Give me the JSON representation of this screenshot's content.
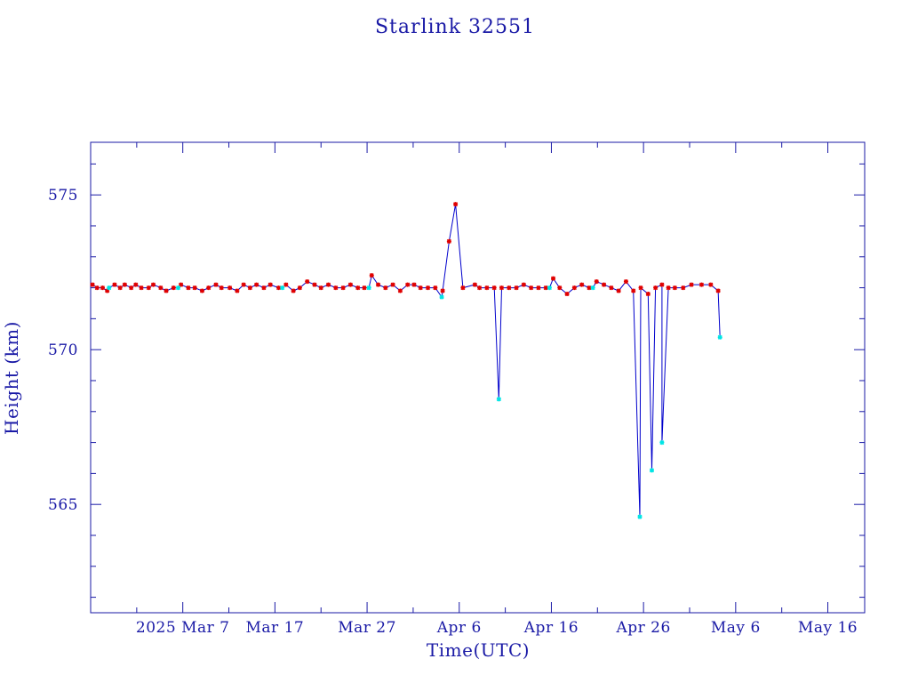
{
  "chart_data": {
    "type": "line",
    "title": "Starlink 32551",
    "xlabel": "Time(UTC)",
    "ylabel": "Height (km)",
    "x_ticks": [
      {
        "day": 0,
        "label": "2025 Mar  7"
      },
      {
        "day": 10,
        "label": "Mar 17"
      },
      {
        "day": 20,
        "label": "Mar 27"
      },
      {
        "day": 30,
        "label": "Apr  6"
      },
      {
        "day": 40,
        "label": "Apr 16"
      },
      {
        "day": 50,
        "label": "Apr 26"
      },
      {
        "day": 60,
        "label": "May  6"
      },
      {
        "day": 70,
        "label": "May 16"
      }
    ],
    "y_ticks": [
      565,
      570,
      575
    ],
    "xlim": [
      -10,
      74
    ],
    "ylim": [
      561.5,
      576.7
    ],
    "grid": false,
    "colors": {
      "axes": "#1a1aa6",
      "line": "#0000cc",
      "marker_primary": "#e00000",
      "marker_secondary": "#00e5e5"
    },
    "series": [
      {
        "name": "",
        "marker": "red",
        "x": [
          -9.8,
          -9.3,
          -8.7,
          -8.2,
          -7.4,
          -6.8,
          -6.3,
          -5.6,
          -5.1,
          -4.5,
          -3.7,
          -3.2,
          -2.4,
          -1.8,
          -1.0,
          -0.2,
          0.6,
          1.3,
          2.1,
          2.8,
          3.6,
          4.2,
          5.1,
          5.9,
          6.6,
          7.3,
          8.0,
          8.8,
          9.5,
          10.4,
          11.2,
          12.0,
          12.7,
          13.5,
          14.3,
          15.0,
          15.8,
          16.6,
          17.4,
          18.2,
          19.0,
          19.7,
          20.5,
          21.2,
          22.0,
          22.8,
          23.6,
          24.4,
          25.1,
          25.8,
          26.6,
          27.4,
          28.2,
          28.9,
          29.6,
          30.4,
          31.7,
          32.2,
          33.0,
          33.8,
          34.6,
          35.4,
          36.2,
          37.0,
          37.8,
          38.6,
          39.4,
          40.2,
          40.9,
          41.7,
          42.5,
          43.3,
          44.1,
          44.9,
          45.7,
          46.5,
          47.3,
          48.1,
          48.9,
          49.7,
          50.5,
          51.3,
          52.0,
          52.7,
          53.4,
          54.3,
          55.2,
          56.3,
          57.3,
          58.1
        ],
        "y": [
          572.1,
          572.0,
          572.0,
          571.9,
          572.1,
          572.0,
          572.1,
          572.0,
          572.1,
          572.0,
          572.0,
          572.1,
          572.0,
          571.9,
          572.0,
          572.1,
          572.0,
          572.0,
          571.9,
          572.0,
          572.1,
          572.0,
          572.0,
          571.9,
          572.1,
          572.0,
          572.1,
          572.0,
          572.1,
          572.0,
          572.1,
          571.9,
          572.0,
          572.2,
          572.1,
          572.0,
          572.1,
          572.0,
          572.0,
          572.1,
          572.0,
          572.0,
          572.4,
          572.1,
          572.0,
          572.1,
          571.9,
          572.1,
          572.1,
          572.0,
          572.0,
          572.0,
          571.9,
          573.5,
          574.7,
          572.0,
          572.1,
          572.0,
          572.0,
          572.0,
          572.0,
          572.0,
          572.0,
          572.1,
          572.0,
          572.0,
          572.0,
          572.3,
          572.0,
          571.8,
          572.0,
          572.1,
          572.0,
          572.2,
          572.1,
          572.0,
          571.9,
          572.2,
          571.9,
          572.0,
          571.8,
          572.0,
          572.1,
          572.0,
          572.0,
          572.0,
          572.1,
          572.1,
          572.1,
          571.9
        ]
      },
      {
        "name": "",
        "marker": "cyan",
        "x": [
          -8.0,
          -0.5,
          10.8,
          20.2,
          28.1,
          34.3,
          39.8,
          44.5,
          49.6,
          50.9,
          52.0,
          58.3
        ],
        "y": [
          572.0,
          572.0,
          572.0,
          572.0,
          571.7,
          568.4,
          572.0,
          572.0,
          564.6,
          566.1,
          567.0,
          570.4
        ]
      }
    ]
  }
}
